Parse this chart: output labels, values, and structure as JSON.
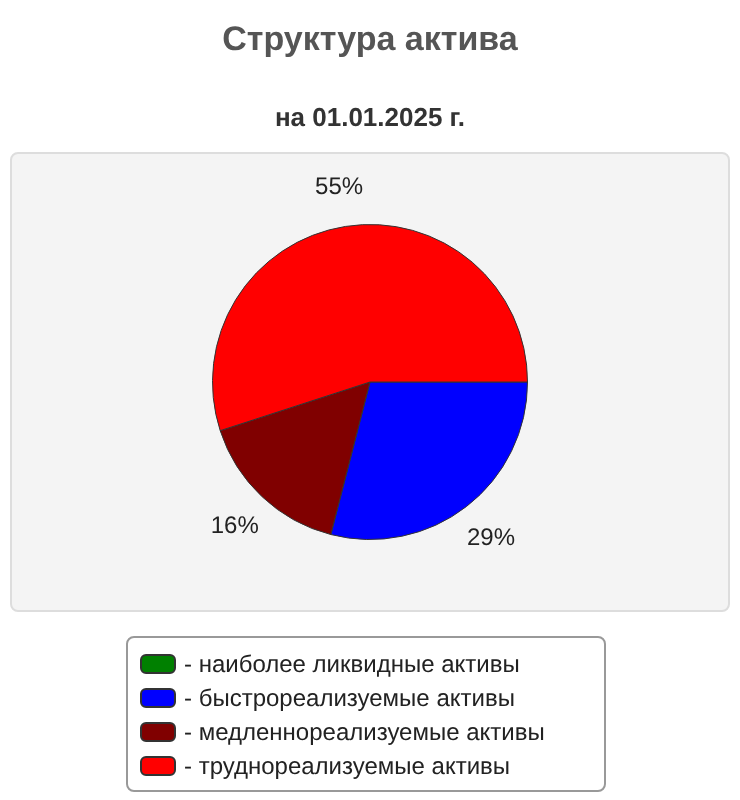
{
  "chart_data": {
    "type": "pie",
    "title": "Структура актива",
    "subtitle": "на 01.01.2025 г.",
    "categories": [
      "- наиболее ликвидные активы",
      "- быстрореализуемые активы",
      "- медленнореализуемые активы",
      "- труднореализуемые активы"
    ],
    "values": [
      0,
      29,
      16,
      55
    ],
    "colors": [
      "#008000",
      "#0000ff",
      "#800000",
      "#ff0000"
    ],
    "value_labels": [
      null,
      "29%",
      "16%",
      "55%"
    ],
    "legend": "bottom"
  }
}
